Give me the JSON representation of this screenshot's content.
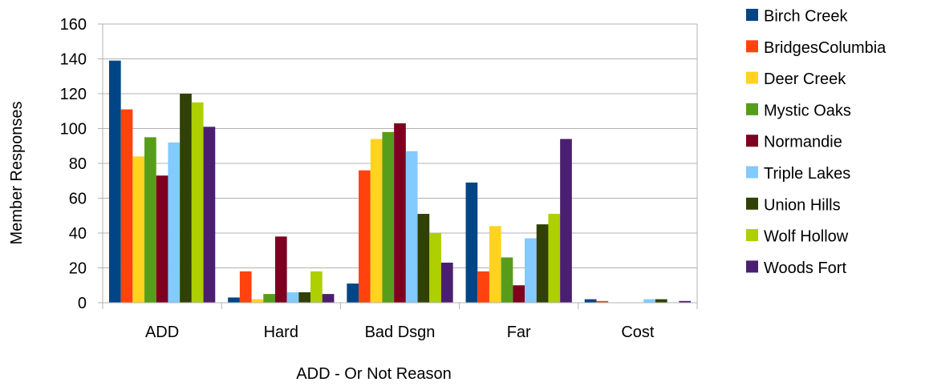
{
  "chart_data": {
    "type": "bar",
    "title": "",
    "xlabel": "ADD - Or Not Reason",
    "ylabel": "Member Responses",
    "ylim": [
      0,
      160
    ],
    "yticks": [
      0,
      20,
      40,
      60,
      80,
      100,
      120,
      140,
      160
    ],
    "grid": true,
    "legend_position": "right",
    "categories": [
      "ADD",
      "Hard",
      "Bad Dsgn",
      "Far",
      "Cost"
    ],
    "series": [
      {
        "name": "Birch Creek",
        "color": "#004586",
        "values": [
          139,
          3,
          11,
          69,
          2
        ]
      },
      {
        "name": "BridgesColumbia",
        "color": "#ff420e",
        "values": [
          111,
          18,
          76,
          18,
          1
        ]
      },
      {
        "name": "Deer Creek",
        "color": "#ffd320",
        "values": [
          84,
          2,
          94,
          44,
          0
        ]
      },
      {
        "name": "Mystic Oaks",
        "color": "#579d1c",
        "values": [
          95,
          5,
          98,
          26,
          0
        ]
      },
      {
        "name": "Normandie",
        "color": "#7e0021",
        "values": [
          73,
          38,
          103,
          10,
          0
        ]
      },
      {
        "name": "Triple Lakes",
        "color": "#83caff",
        "values": [
          92,
          6,
          87,
          37,
          2
        ]
      },
      {
        "name": "Union Hills",
        "color": "#314004",
        "values": [
          120,
          6,
          51,
          45,
          2
        ]
      },
      {
        "name": "Wolf Hollow",
        "color": "#aecf00",
        "values": [
          115,
          18,
          40,
          51,
          0
        ]
      },
      {
        "name": "Woods Fort",
        "color": "#4b1f6f",
        "values": [
          101,
          5,
          23,
          94,
          1
        ]
      }
    ]
  }
}
